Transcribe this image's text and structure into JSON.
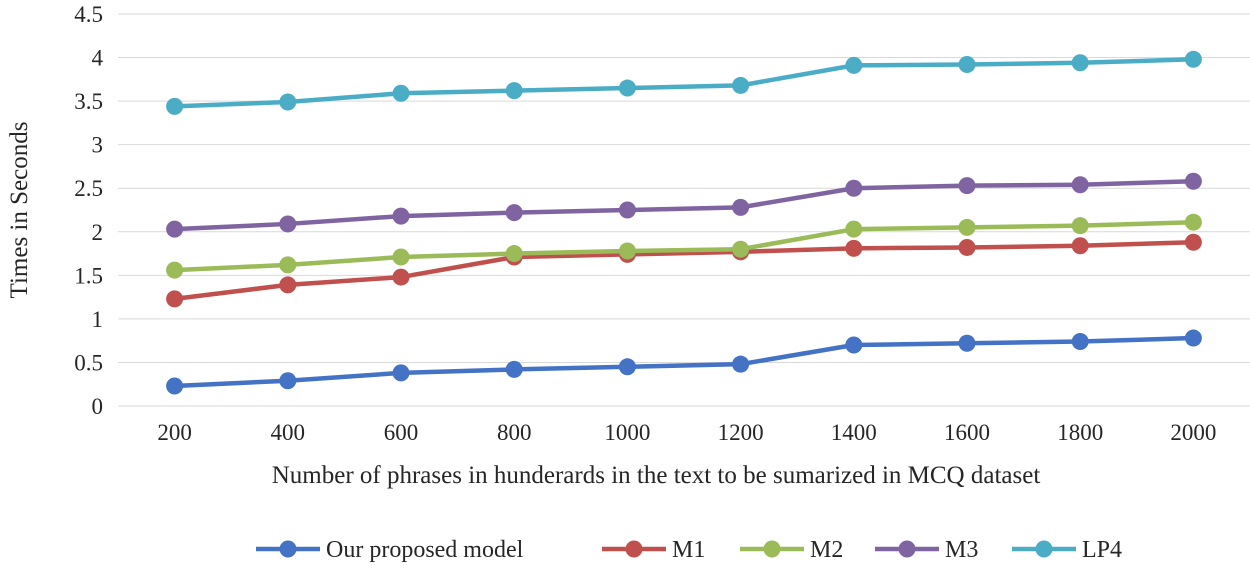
{
  "chart_data": {
    "type": "line",
    "title": "",
    "xlabel": "Number of phrases in hunderards in the text to be sumarized in MCQ dataset",
    "ylabel": "Times in Seconds",
    "ylim": [
      0,
      4.5
    ],
    "yticks": [
      "0",
      "0.5",
      "1",
      "1.5",
      "2",
      "2.5",
      "3",
      "3.5",
      "4",
      "4.5"
    ],
    "categories": [
      "200",
      "400",
      "600",
      "800",
      "1000",
      "1200",
      "1400",
      "1600",
      "1800",
      "2000"
    ],
    "grid": true,
    "legend_position": "bottom",
    "series": [
      {
        "name": "Our proposed model",
        "color": "#4472c4",
        "values": [
          0.23,
          0.29,
          0.38,
          0.42,
          0.45,
          0.48,
          0.7,
          0.72,
          0.74,
          0.78
        ]
      },
      {
        "name": "M1",
        "color": "#c0504d",
        "values": [
          1.23,
          1.39,
          1.48,
          1.71,
          1.74,
          1.77,
          1.81,
          1.82,
          1.84,
          1.88
        ]
      },
      {
        "name": "M2",
        "color": "#9bbb59",
        "values": [
          1.56,
          1.62,
          1.71,
          1.75,
          1.78,
          1.8,
          2.03,
          2.05,
          2.07,
          2.11
        ]
      },
      {
        "name": "M3",
        "color": "#8064a2",
        "values": [
          2.03,
          2.09,
          2.18,
          2.22,
          2.25,
          2.28,
          2.5,
          2.53,
          2.54,
          2.58
        ]
      },
      {
        "name": "LP4",
        "color": "#4bacc6",
        "values": [
          3.44,
          3.49,
          3.59,
          3.62,
          3.65,
          3.68,
          3.91,
          3.92,
          3.94,
          3.98
        ]
      }
    ]
  }
}
